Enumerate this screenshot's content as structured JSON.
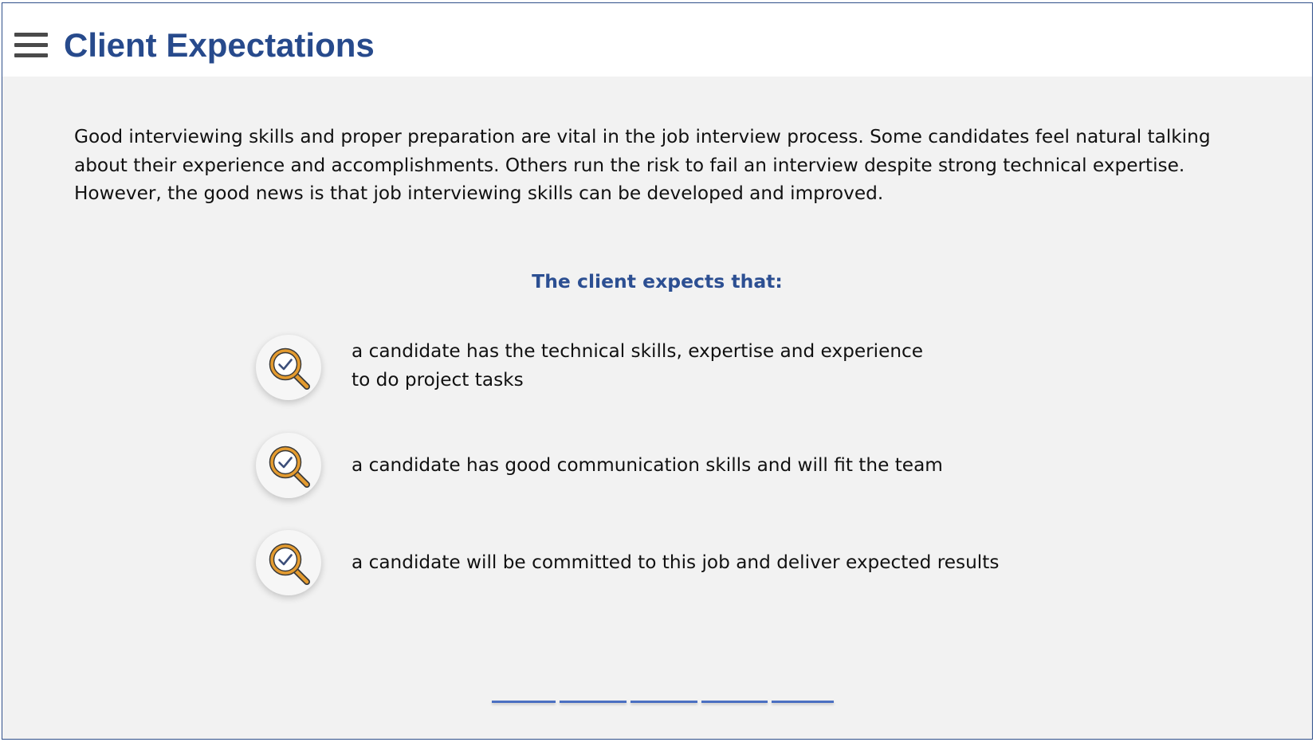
{
  "header": {
    "title": "Client Expectations",
    "menu_icon": "hamburger-menu-icon"
  },
  "intro": {
    "text": "Good interviewing skills and proper preparation are vital in the job interview process. Some candidates feel natural talking about their experience and accomplishments. Others run the risk to fail an interview despite strong technical expertise. However, the good news is that job interviewing skills can be developed and improved."
  },
  "expectations": {
    "heading": "The client expects that:",
    "icon": "magnifier-check-icon",
    "items": [
      {
        "text": "a candidate has the technical skills, expertise and experience\nto do project tasks"
      },
      {
        "text": "a candidate has good communication skills and will fit the team"
      },
      {
        "text": "a candidate will be committed to this job and deliver expected results"
      }
    ]
  },
  "progress": {
    "segments": 5,
    "color": "#4b70c2"
  },
  "colors": {
    "title": "#274a8c",
    "heading": "#2c4f92",
    "icon_ring": "#e49b2f",
    "icon_check": "#3d4f7a",
    "background": "#f2f2f2"
  }
}
